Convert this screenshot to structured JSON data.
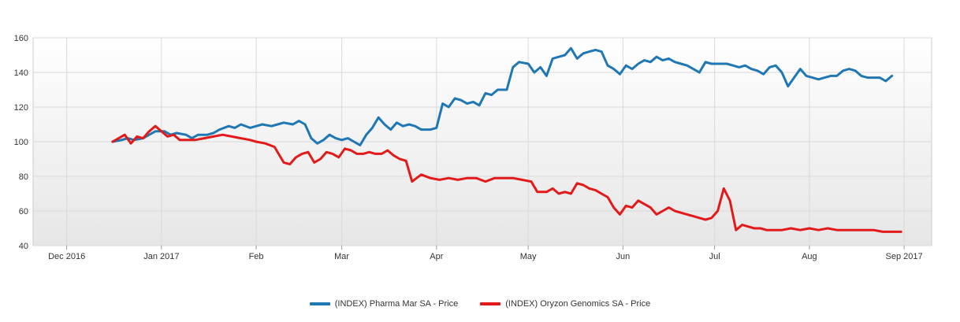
{
  "chart_data": {
    "type": "line",
    "title": "",
    "xlabel": "",
    "ylabel": "",
    "ylim": [
      40,
      160
    ],
    "xlim": [
      "2016-11-20",
      "2017-09-10"
    ],
    "yticks": [
      40,
      60,
      80,
      100,
      120,
      140,
      160
    ],
    "xticks": [
      {
        "label": "Dec 2016",
        "date": "2016-12-01"
      },
      {
        "label": "Jan 2017",
        "date": "2017-01-01"
      },
      {
        "label": "Feb",
        "date": "2017-02-01"
      },
      {
        "label": "Mar",
        "date": "2017-03-01"
      },
      {
        "label": "Apr",
        "date": "2017-04-01"
      },
      {
        "label": "May",
        "date": "2017-05-01"
      },
      {
        "label": "Jun",
        "date": "2017-06-01"
      },
      {
        "label": "Jul",
        "date": "2017-07-01"
      },
      {
        "label": "Aug",
        "date": "2017-08-01"
      },
      {
        "label": "Sep 2017",
        "date": "2017-09-01"
      }
    ],
    "grid": true,
    "legend_position": "bottom",
    "series": [
      {
        "name": "(INDEX) Pharma Mar SA - Price",
        "color": "#1f77b4",
        "points": [
          [
            "2016-12-16",
            100
          ],
          [
            "2016-12-19",
            101
          ],
          [
            "2016-12-21",
            102
          ],
          [
            "2016-12-23",
            101
          ],
          [
            "2016-12-26",
            102
          ],
          [
            "2016-12-28",
            104
          ],
          [
            "2016-12-30",
            106
          ],
          [
            "2017-01-02",
            106
          ],
          [
            "2017-01-04",
            104
          ],
          [
            "2017-01-06",
            105
          ],
          [
            "2017-01-09",
            104
          ],
          [
            "2017-01-11",
            102
          ],
          [
            "2017-01-13",
            104
          ],
          [
            "2017-01-16",
            104
          ],
          [
            "2017-01-18",
            105
          ],
          [
            "2017-01-20",
            107
          ],
          [
            "2017-01-23",
            109
          ],
          [
            "2017-01-25",
            108
          ],
          [
            "2017-01-27",
            110
          ],
          [
            "2017-01-30",
            108
          ],
          [
            "2017-02-01",
            109
          ],
          [
            "2017-02-03",
            110
          ],
          [
            "2017-02-06",
            109
          ],
          [
            "2017-02-08",
            110
          ],
          [
            "2017-02-10",
            111
          ],
          [
            "2017-02-13",
            110
          ],
          [
            "2017-02-15",
            112
          ],
          [
            "2017-02-17",
            110
          ],
          [
            "2017-02-19",
            102
          ],
          [
            "2017-02-21",
            99
          ],
          [
            "2017-02-23",
            101
          ],
          [
            "2017-02-25",
            104
          ],
          [
            "2017-02-27",
            102
          ],
          [
            "2017-03-01",
            101
          ],
          [
            "2017-03-03",
            102
          ],
          [
            "2017-03-05",
            100
          ],
          [
            "2017-03-07",
            98
          ],
          [
            "2017-03-09",
            104
          ],
          [
            "2017-03-11",
            108
          ],
          [
            "2017-03-13",
            114
          ],
          [
            "2017-03-15",
            110
          ],
          [
            "2017-03-17",
            107
          ],
          [
            "2017-03-19",
            111
          ],
          [
            "2017-03-21",
            109
          ],
          [
            "2017-03-23",
            110
          ],
          [
            "2017-03-25",
            109
          ],
          [
            "2017-03-27",
            107
          ],
          [
            "2017-03-30",
            107
          ],
          [
            "2017-04-01",
            108
          ],
          [
            "2017-04-03",
            122
          ],
          [
            "2017-04-05",
            120
          ],
          [
            "2017-04-07",
            125
          ],
          [
            "2017-04-09",
            124
          ],
          [
            "2017-04-11",
            122
          ],
          [
            "2017-04-13",
            123
          ],
          [
            "2017-04-15",
            121
          ],
          [
            "2017-04-17",
            128
          ],
          [
            "2017-04-19",
            127
          ],
          [
            "2017-04-21",
            130
          ],
          [
            "2017-04-24",
            130
          ],
          [
            "2017-04-26",
            143
          ],
          [
            "2017-04-28",
            146
          ],
          [
            "2017-05-01",
            145
          ],
          [
            "2017-05-03",
            140
          ],
          [
            "2017-05-05",
            143
          ],
          [
            "2017-05-07",
            138
          ],
          [
            "2017-05-09",
            148
          ],
          [
            "2017-05-11",
            149
          ],
          [
            "2017-05-13",
            150
          ],
          [
            "2017-05-15",
            154
          ],
          [
            "2017-05-17",
            148
          ],
          [
            "2017-05-19",
            151
          ],
          [
            "2017-05-21",
            152
          ],
          [
            "2017-05-23",
            153
          ],
          [
            "2017-05-25",
            152
          ],
          [
            "2017-05-27",
            144
          ],
          [
            "2017-05-29",
            142
          ],
          [
            "2017-05-31",
            139
          ],
          [
            "2017-06-02",
            144
          ],
          [
            "2017-06-04",
            142
          ],
          [
            "2017-06-06",
            145
          ],
          [
            "2017-06-08",
            147
          ],
          [
            "2017-06-10",
            146
          ],
          [
            "2017-06-12",
            149
          ],
          [
            "2017-06-14",
            147
          ],
          [
            "2017-06-16",
            148
          ],
          [
            "2017-06-18",
            146
          ],
          [
            "2017-06-20",
            145
          ],
          [
            "2017-06-22",
            144
          ],
          [
            "2017-06-24",
            142
          ],
          [
            "2017-06-26",
            140
          ],
          [
            "2017-06-28",
            146
          ],
          [
            "2017-06-30",
            145
          ],
          [
            "2017-07-03",
            145
          ],
          [
            "2017-07-05",
            145
          ],
          [
            "2017-07-07",
            144
          ],
          [
            "2017-07-09",
            143
          ],
          [
            "2017-07-11",
            144
          ],
          [
            "2017-07-13",
            142
          ],
          [
            "2017-07-15",
            141
          ],
          [
            "2017-07-17",
            139
          ],
          [
            "2017-07-19",
            143
          ],
          [
            "2017-07-21",
            144
          ],
          [
            "2017-07-23",
            140
          ],
          [
            "2017-07-25",
            132
          ],
          [
            "2017-07-27",
            137
          ],
          [
            "2017-07-29",
            142
          ],
          [
            "2017-07-31",
            138
          ],
          [
            "2017-08-02",
            137
          ],
          [
            "2017-08-04",
            136
          ],
          [
            "2017-08-06",
            137
          ],
          [
            "2017-08-08",
            138
          ],
          [
            "2017-08-10",
            138
          ],
          [
            "2017-08-12",
            141
          ],
          [
            "2017-08-14",
            142
          ],
          [
            "2017-08-16",
            141
          ],
          [
            "2017-08-18",
            138
          ],
          [
            "2017-08-20",
            137
          ],
          [
            "2017-08-22",
            137
          ],
          [
            "2017-08-24",
            137
          ],
          [
            "2017-08-26",
            135
          ],
          [
            "2017-08-28",
            138
          ]
        ]
      },
      {
        "name": "(INDEX) Oryzon Genomics SA - Price",
        "color": "#e21a1a",
        "points": [
          [
            "2016-12-16",
            100
          ],
          [
            "2016-12-18",
            102
          ],
          [
            "2016-12-20",
            104
          ],
          [
            "2016-12-22",
            99
          ],
          [
            "2016-12-24",
            103
          ],
          [
            "2016-12-26",
            102
          ],
          [
            "2016-12-28",
            106
          ],
          [
            "2016-12-30",
            109
          ],
          [
            "2017-01-01",
            106
          ],
          [
            "2017-01-03",
            103
          ],
          [
            "2017-01-05",
            104
          ],
          [
            "2017-01-07",
            101
          ],
          [
            "2017-01-09",
            101
          ],
          [
            "2017-01-12",
            101
          ],
          [
            "2017-01-15",
            102
          ],
          [
            "2017-01-18",
            103
          ],
          [
            "2017-01-21",
            104
          ],
          [
            "2017-01-24",
            103
          ],
          [
            "2017-01-27",
            102
          ],
          [
            "2017-01-30",
            101
          ],
          [
            "2017-02-01",
            100
          ],
          [
            "2017-02-04",
            99
          ],
          [
            "2017-02-07",
            97
          ],
          [
            "2017-02-10",
            88
          ],
          [
            "2017-02-12",
            87
          ],
          [
            "2017-02-14",
            91
          ],
          [
            "2017-02-16",
            93
          ],
          [
            "2017-02-18",
            94
          ],
          [
            "2017-02-20",
            88
          ],
          [
            "2017-02-22",
            90
          ],
          [
            "2017-02-24",
            94
          ],
          [
            "2017-02-26",
            93
          ],
          [
            "2017-02-28",
            91
          ],
          [
            "2017-03-02",
            96
          ],
          [
            "2017-03-04",
            95
          ],
          [
            "2017-03-06",
            93
          ],
          [
            "2017-03-08",
            93
          ],
          [
            "2017-03-10",
            94
          ],
          [
            "2017-03-12",
            93
          ],
          [
            "2017-03-14",
            93
          ],
          [
            "2017-03-16",
            95
          ],
          [
            "2017-03-18",
            92
          ],
          [
            "2017-03-20",
            90
          ],
          [
            "2017-03-22",
            89
          ],
          [
            "2017-03-24",
            77
          ],
          [
            "2017-03-27",
            81
          ],
          [
            "2017-03-30",
            79
          ],
          [
            "2017-04-02",
            78
          ],
          [
            "2017-04-05",
            79
          ],
          [
            "2017-04-08",
            78
          ],
          [
            "2017-04-11",
            79
          ],
          [
            "2017-04-14",
            79
          ],
          [
            "2017-04-17",
            77
          ],
          [
            "2017-04-20",
            79
          ],
          [
            "2017-04-23",
            79
          ],
          [
            "2017-04-26",
            79
          ],
          [
            "2017-04-29",
            78
          ],
          [
            "2017-05-02",
            77
          ],
          [
            "2017-05-04",
            71
          ],
          [
            "2017-05-07",
            71
          ],
          [
            "2017-05-09",
            73
          ],
          [
            "2017-05-11",
            70
          ],
          [
            "2017-05-13",
            71
          ],
          [
            "2017-05-15",
            70
          ],
          [
            "2017-05-17",
            76
          ],
          [
            "2017-05-19",
            75
          ],
          [
            "2017-05-21",
            73
          ],
          [
            "2017-05-23",
            72
          ],
          [
            "2017-05-25",
            70
          ],
          [
            "2017-05-27",
            68
          ],
          [
            "2017-05-29",
            62
          ],
          [
            "2017-05-31",
            58
          ],
          [
            "2017-06-02",
            63
          ],
          [
            "2017-06-04",
            62
          ],
          [
            "2017-06-06",
            66
          ],
          [
            "2017-06-08",
            64
          ],
          [
            "2017-06-10",
            62
          ],
          [
            "2017-06-12",
            58
          ],
          [
            "2017-06-14",
            60
          ],
          [
            "2017-06-16",
            62
          ],
          [
            "2017-06-18",
            60
          ],
          [
            "2017-06-20",
            59
          ],
          [
            "2017-06-22",
            58
          ],
          [
            "2017-06-24",
            57
          ],
          [
            "2017-06-26",
            56
          ],
          [
            "2017-06-28",
            55
          ],
          [
            "2017-06-30",
            56
          ],
          [
            "2017-07-02",
            60
          ],
          [
            "2017-07-04",
            73
          ],
          [
            "2017-07-06",
            66
          ],
          [
            "2017-07-08",
            49
          ],
          [
            "2017-07-10",
            52
          ],
          [
            "2017-07-12",
            51
          ],
          [
            "2017-07-14",
            50
          ],
          [
            "2017-07-16",
            50
          ],
          [
            "2017-07-18",
            49
          ],
          [
            "2017-07-20",
            49
          ],
          [
            "2017-07-23",
            49
          ],
          [
            "2017-07-26",
            50
          ],
          [
            "2017-07-29",
            49
          ],
          [
            "2017-08-01",
            50
          ],
          [
            "2017-08-04",
            49
          ],
          [
            "2017-08-07",
            50
          ],
          [
            "2017-08-10",
            49
          ],
          [
            "2017-08-13",
            49
          ],
          [
            "2017-08-16",
            49
          ],
          [
            "2017-08-19",
            49
          ],
          [
            "2017-08-22",
            49
          ],
          [
            "2017-08-25",
            48
          ],
          [
            "2017-08-28",
            48
          ],
          [
            "2017-08-31",
            48
          ]
        ]
      }
    ]
  }
}
